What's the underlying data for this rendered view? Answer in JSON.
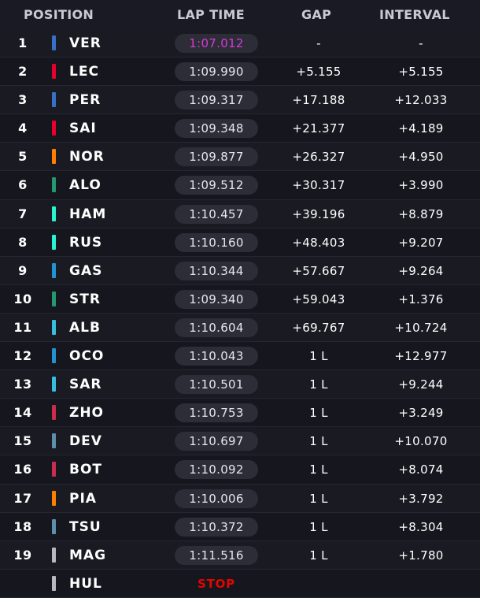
{
  "header": {
    "position": "POSITION",
    "lap_time": "LAP TIME",
    "gap": "GAP",
    "interval": "INTERVAL"
  },
  "rows": [
    {
      "pos": "1",
      "driver": "VER",
      "team_color": "#3671c6",
      "lap": "1:07.012",
      "best": true,
      "gap": "-",
      "interval": "-"
    },
    {
      "pos": "2",
      "driver": "LEC",
      "team_color": "#e8002d",
      "lap": "1:09.990",
      "gap": "+5.155",
      "interval": "+5.155"
    },
    {
      "pos": "3",
      "driver": "PER",
      "team_color": "#3671c6",
      "lap": "1:09.317",
      "gap": "+17.188",
      "interval": "+12.033"
    },
    {
      "pos": "4",
      "driver": "SAI",
      "team_color": "#e8002d",
      "lap": "1:09.348",
      "gap": "+21.377",
      "interval": "+4.189"
    },
    {
      "pos": "5",
      "driver": "NOR",
      "team_color": "#ff8000",
      "lap": "1:09.877",
      "gap": "+26.327",
      "interval": "+4.950"
    },
    {
      "pos": "6",
      "driver": "ALO",
      "team_color": "#229971",
      "lap": "1:09.512",
      "gap": "+30.317",
      "interval": "+3.990"
    },
    {
      "pos": "7",
      "driver": "HAM",
      "team_color": "#27f4d2",
      "lap": "1:10.457",
      "gap": "+39.196",
      "interval": "+8.879"
    },
    {
      "pos": "8",
      "driver": "RUS",
      "team_color": "#27f4d2",
      "lap": "1:10.160",
      "gap": "+48.403",
      "interval": "+9.207"
    },
    {
      "pos": "9",
      "driver": "GAS",
      "team_color": "#2293d1",
      "lap": "1:10.344",
      "gap": "+57.667",
      "interval": "+9.264"
    },
    {
      "pos": "10",
      "driver": "STR",
      "team_color": "#229971",
      "lap": "1:09.340",
      "gap": "+59.043",
      "interval": "+1.376"
    },
    {
      "pos": "11",
      "driver": "ALB",
      "team_color": "#37bedd",
      "lap": "1:10.604",
      "gap": "+69.767",
      "interval": "+10.724"
    },
    {
      "pos": "12",
      "driver": "OCO",
      "team_color": "#2293d1",
      "lap": "1:10.043",
      "gap": "1 L",
      "interval": "+12.977"
    },
    {
      "pos": "13",
      "driver": "SAR",
      "team_color": "#37bedd",
      "lap": "1:10.501",
      "gap": "1 L",
      "interval": "+9.244"
    },
    {
      "pos": "14",
      "driver": "ZHO",
      "team_color": "#c92d4b",
      "lap": "1:10.753",
      "gap": "1 L",
      "interval": "+3.249"
    },
    {
      "pos": "15",
      "driver": "DEV",
      "team_color": "#5e8faa",
      "lap": "1:10.697",
      "gap": "1 L",
      "interval": "+10.070"
    },
    {
      "pos": "16",
      "driver": "BOT",
      "team_color": "#c92d4b",
      "lap": "1:10.092",
      "gap": "1 L",
      "interval": "+8.074"
    },
    {
      "pos": "17",
      "driver": "PIA",
      "team_color": "#ff8000",
      "lap": "1:10.006",
      "gap": "1 L",
      "interval": "+3.792"
    },
    {
      "pos": "18",
      "driver": "TSU",
      "team_color": "#5e8faa",
      "lap": "1:10.372",
      "gap": "1 L",
      "interval": "+8.304"
    },
    {
      "pos": "19",
      "driver": "MAG",
      "team_color": "#b6babd",
      "lap": "1:11.516",
      "gap": "1 L",
      "interval": "+1.780"
    },
    {
      "pos": "",
      "driver": "HUL",
      "team_color": "#b6babd",
      "lap": "STOP",
      "stop": true,
      "gap": "",
      "interval": ""
    }
  ]
}
